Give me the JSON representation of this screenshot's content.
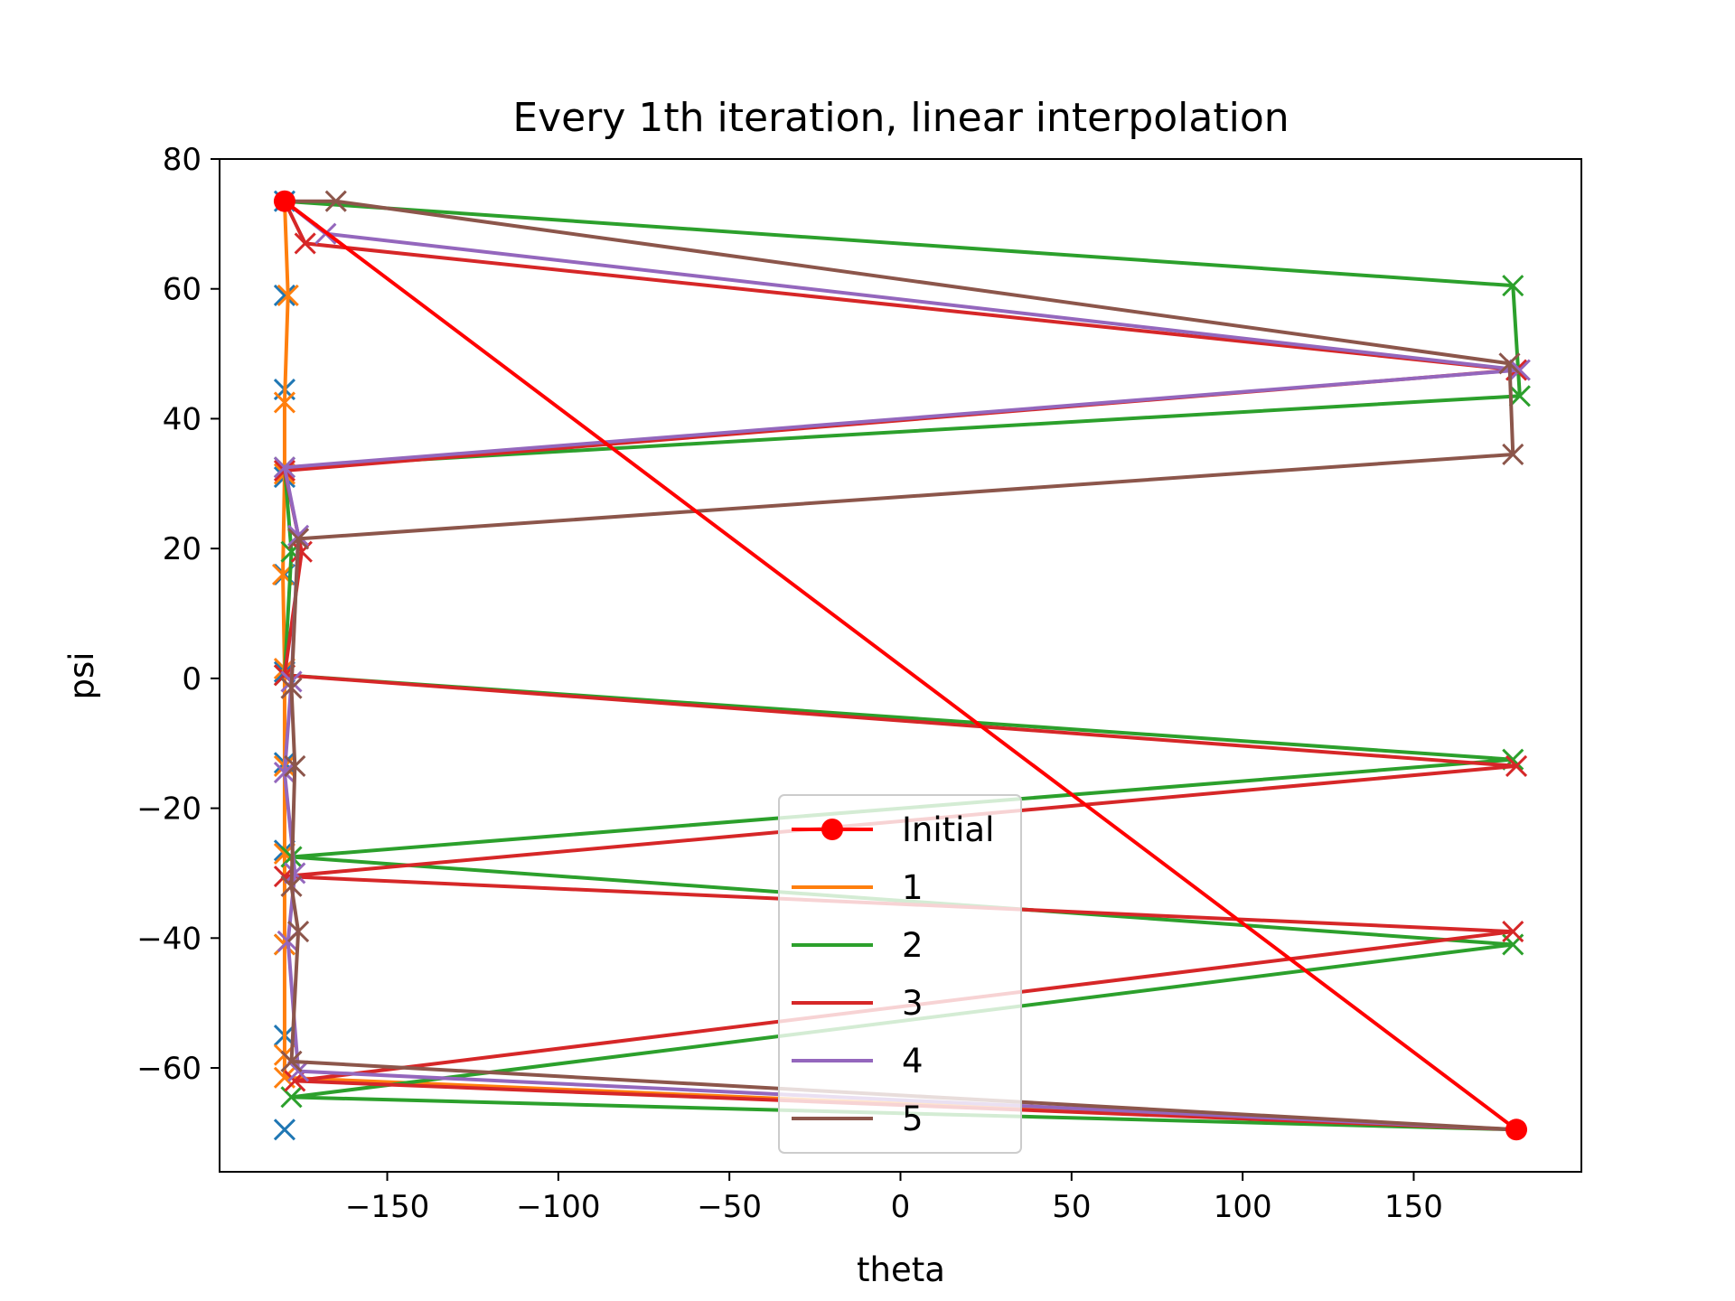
{
  "chart_data": {
    "type": "line",
    "title": "Every 1th iteration, linear interpolation",
    "xlabel": "theta",
    "ylabel": "psi",
    "xlim": [
      -199,
      199
    ],
    "ylim": [
      -76,
      80
    ],
    "xticks": [
      -150,
      -100,
      -50,
      0,
      50,
      100,
      150
    ],
    "xtick_labels": [
      "−150",
      "−100",
      "−50",
      "0",
      "50",
      "100",
      "150"
    ],
    "yticks": [
      -60,
      -40,
      -20,
      0,
      20,
      40,
      60,
      80
    ],
    "ytick_labels": [
      "−60",
      "−40",
      "−20",
      "0",
      "20",
      "40",
      "60",
      "80"
    ],
    "grid": false,
    "legend_position": "lower-center",
    "colors": {
      "initial": "#ff0000",
      "base": "#1f77b4",
      "s1": "#ff7f0e",
      "s2": "#2ca02c",
      "s3": "#d62728",
      "s4": "#9467bd",
      "s5": "#8c564b"
    },
    "legend": [
      "Initial",
      "1",
      "2",
      "3",
      "4",
      "5"
    ],
    "initial": {
      "x": [
        -180,
        180
      ],
      "y": [
        73.5,
        -69.5
      ]
    },
    "base_markers": {
      "x": [
        -180,
        -180,
        -180,
        -180,
        -180,
        -180,
        -180,
        -180,
        -180,
        -180,
        -180
      ],
      "y": [
        73.5,
        59,
        44.5,
        31,
        16,
        1,
        -13,
        -26.5,
        -41,
        -55,
        -69.5
      ]
    },
    "series": [
      {
        "name": "1",
        "x": [
          -180,
          -179,
          -180,
          -180,
          -180.5,
          -180,
          -180,
          -180,
          -180,
          -180,
          -180,
          180
        ],
        "y": [
          73.5,
          59,
          42.5,
          31.5,
          16,
          1.5,
          -13.5,
          -27,
          -41,
          -58,
          -61.5,
          -69.5
        ]
      },
      {
        "name": "2",
        "x": [
          -180,
          179,
          181,
          -180,
          -178,
          -180,
          179,
          -178,
          179,
          -178,
          180
        ],
        "y": [
          73.5,
          60.5,
          43.5,
          32.5,
          19.5,
          0.5,
          -12.5,
          -27.5,
          -41,
          -64.5,
          -69.5
        ]
      },
      {
        "name": "3",
        "x": [
          -180,
          -174,
          180,
          -180,
          -175,
          -180,
          180,
          -180,
          179,
          -177,
          180
        ],
        "y": [
          73.5,
          67,
          47.5,
          32,
          19.5,
          0.5,
          -13.5,
          -30.5,
          -39,
          -62,
          -69.5
        ]
      },
      {
        "name": "4",
        "x": [
          -180,
          -168,
          181,
          -180,
          -176,
          -178,
          -180,
          -177,
          -179,
          -176,
          180
        ],
        "y": [
          73.5,
          68.5,
          47.5,
          32.5,
          22,
          -0.5,
          -14.5,
          -30,
          -40.5,
          -60.5,
          -69.5
        ]
      },
      {
        "name": "5",
        "x": [
          -180,
          -165,
          178,
          179,
          -176,
          -178,
          -177,
          -178,
          -176,
          -178,
          180
        ],
        "y": [
          73.5,
          73.5,
          48.5,
          34.5,
          21.5,
          -1.5,
          -13.5,
          -32,
          -39,
          -59,
          -69.5
        ]
      }
    ]
  }
}
